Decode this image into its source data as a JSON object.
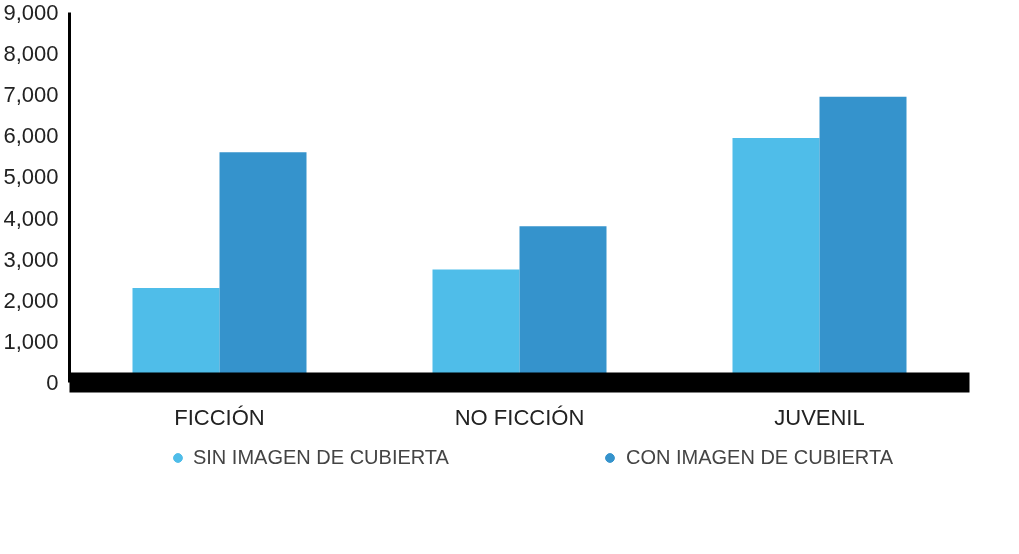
{
  "chart_data": {
    "type": "bar",
    "categories": [
      "FICCIÓN",
      "NO FICCIÓN",
      "JUVENIL"
    ],
    "series": [
      {
        "name": "SIN IMAGEN DE CUBIERTA",
        "color": "#4fbde9",
        "values": [
          2300,
          2750,
          5950
        ]
      },
      {
        "name": "CON IMAGEN DE CUBIERTA",
        "color": "#3593cc",
        "values": [
          5600,
          3800,
          6950
        ]
      }
    ],
    "ylim": [
      0,
      9000
    ],
    "yticks": [
      0,
      {
        "value": 1000,
        "label": "1,000"
      },
      {
        "value": 2000,
        "label": "2,000"
      },
      {
        "value": 3000,
        "label": "3,000"
      },
      {
        "value": 4000,
        "label": "4,000"
      },
      {
        "value": 5000,
        "label": "5,000"
      },
      {
        "value": 6000,
        "label": "6,000"
      },
      {
        "value": 7000,
        "label": "7,000"
      },
      {
        "value": 8000,
        "label": "8,000"
      },
      {
        "value": 9000,
        "label": "9,000"
      }
    ],
    "grid": false,
    "legend": "bottom"
  }
}
